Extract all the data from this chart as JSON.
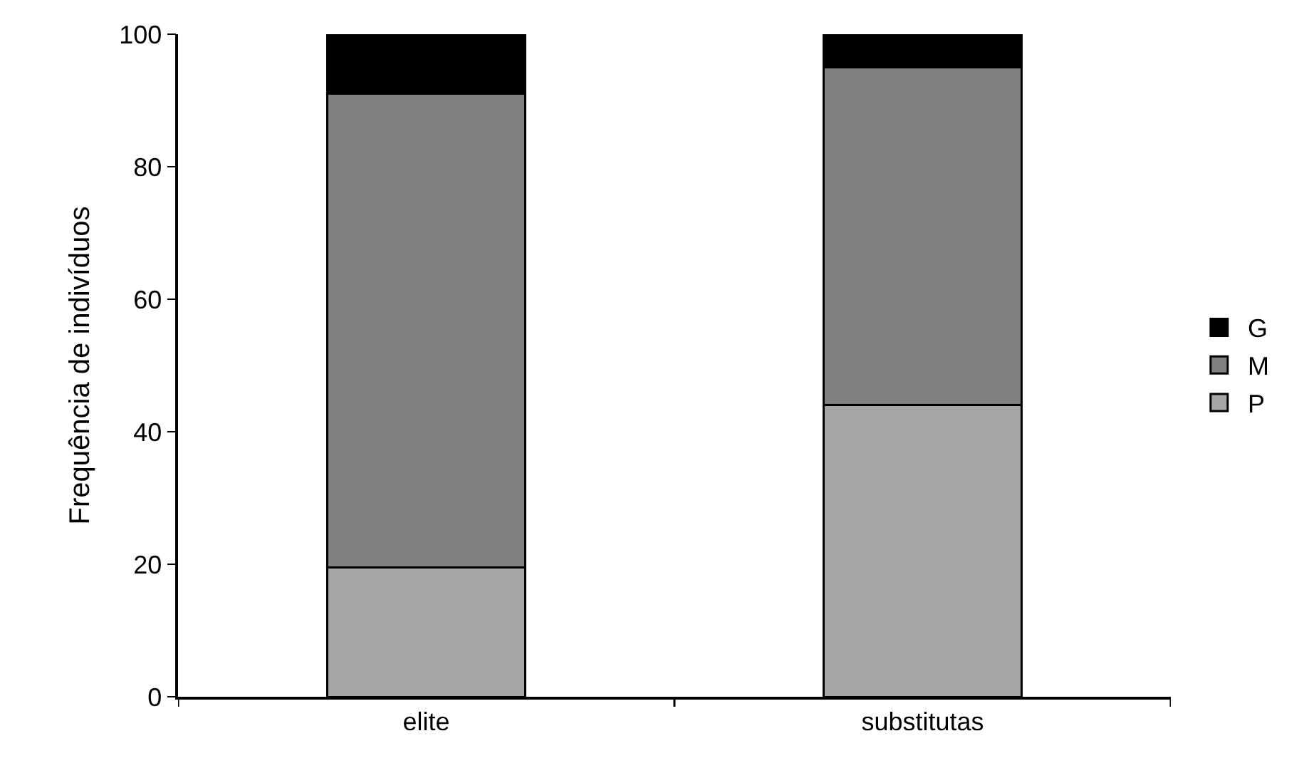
{
  "chart_data": {
    "type": "bar",
    "stacked": true,
    "ylabel": "Frequência de indivíduos",
    "categories": [
      "elite",
      "substitutas"
    ],
    "series": [
      {
        "name": "P",
        "color": "#a6a6a6",
        "values": [
          19.5,
          44
        ]
      },
      {
        "name": "M",
        "color": "#808080",
        "values": [
          71.5,
          51
        ]
      },
      {
        "name": "G",
        "color": "#000000",
        "values": [
          9,
          5
        ]
      }
    ],
    "ylim": [
      0,
      100
    ],
    "yticks": [
      0,
      20,
      40,
      60,
      80,
      100
    ],
    "legend": "right"
  }
}
